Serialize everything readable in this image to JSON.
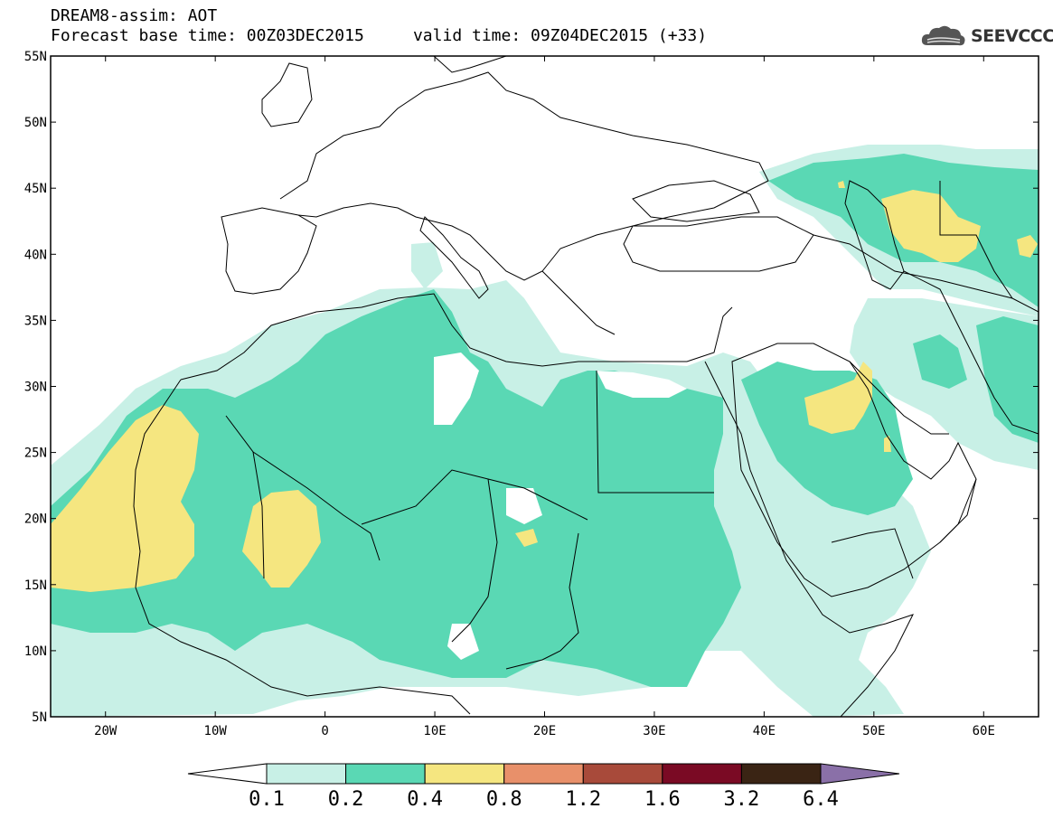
{
  "header": {
    "line1": "DREAM8-assim: AOT",
    "base_time": "Forecast base time: 00Z03DEC2015",
    "valid_time": "valid time: 09Z04DEC2015 (+33)"
  },
  "logo": {
    "text": "SEEVCCC",
    "icon": "cloud-icon"
  },
  "map": {
    "lon_range": [
      -25,
      65
    ],
    "lat_range": [
      5,
      55
    ],
    "lat_ticks": [
      "55N",
      "50N",
      "45N",
      "40N",
      "35N",
      "30N",
      "25N",
      "20N",
      "15N",
      "10N",
      "5N"
    ],
    "lon_ticks": [
      "20W",
      "10W",
      "0",
      "10E",
      "20E",
      "30E",
      "40E",
      "50E",
      "60E"
    ]
  },
  "colorbar": {
    "labels": [
      "0.1",
      "0.2",
      "0.4",
      "0.8",
      "1.2",
      "1.6",
      "3.2",
      "6.4"
    ],
    "colors": [
      "#ffffff",
      "#c8f0e6",
      "#5ad8b4",
      "#f5e680",
      "#e8906a",
      "#a84a3a",
      "#7a0a24",
      "#3a2414",
      "#8a70a8"
    ]
  }
}
